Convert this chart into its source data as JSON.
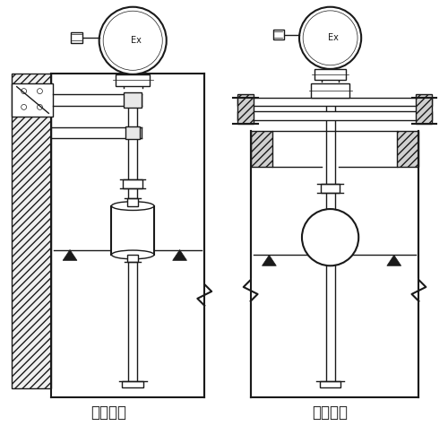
{
  "bg_color": "#ffffff",
  "line_color": "#1a1a1a",
  "label_left": "架装固定",
  "label_right": "法兰固定",
  "label_fontsize": 12,
  "fig_width": 5.0,
  "fig_height": 4.75,
  "dpi": 100
}
